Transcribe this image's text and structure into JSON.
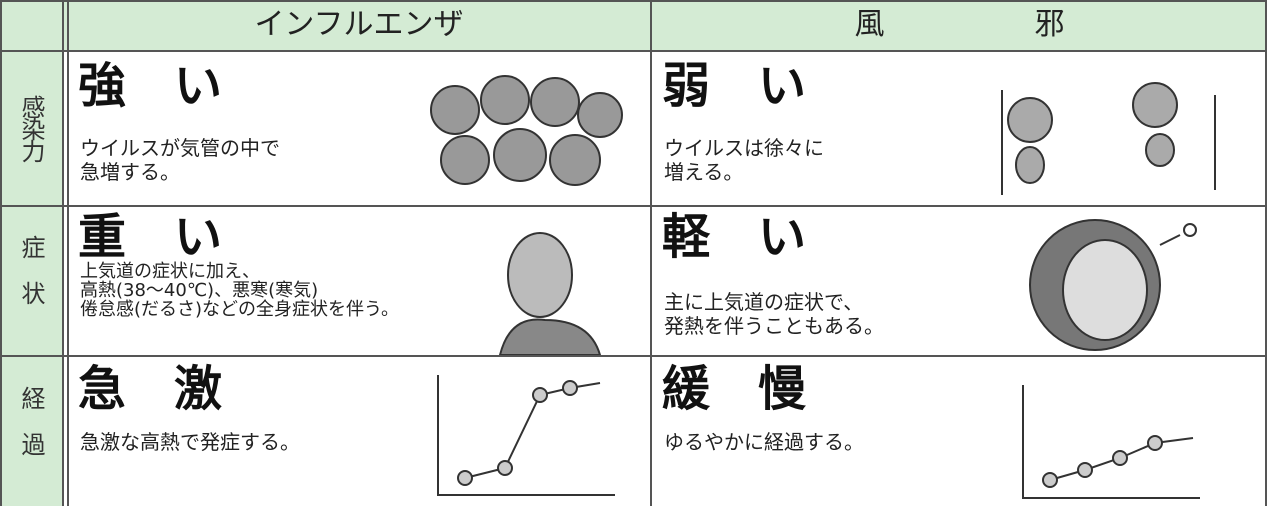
{
  "table": {
    "header": [
      "インフルエンザ",
      "風　　　　　邪"
    ],
    "rows": [
      {
        "label": "感染力",
        "cells": [
          {
            "title": "強　い",
            "text": [
              "ウイルスが気管の中で",
              "急増する。"
            ]
          },
          {
            "title": "弱　い",
            "text": [
              "ウイルスは徐々に",
              "増える。"
            ]
          }
        ]
      },
      {
        "label": "症状",
        "cells": [
          {
            "title": "重　い",
            "text": [
              "上気道の症状に加え、",
              "高熱(38～40℃)、悪寒(寒気)",
              "倦怠感(だるさ)などの全身症状を伴う。"
            ]
          },
          {
            "title": "軽　い",
            "text": [
              "主に上気道の症状で、",
              "発熱を伴うこともある。"
            ]
          }
        ]
      },
      {
        "label": "経過",
        "cells": [
          {
            "title": "急　激",
            "text": [
              "急激な高熱で発症する。"
            ]
          },
          {
            "title": "緩　慢",
            "text": [
              "ゆるやかに経過する。"
            ]
          }
        ]
      }
    ]
  }
}
